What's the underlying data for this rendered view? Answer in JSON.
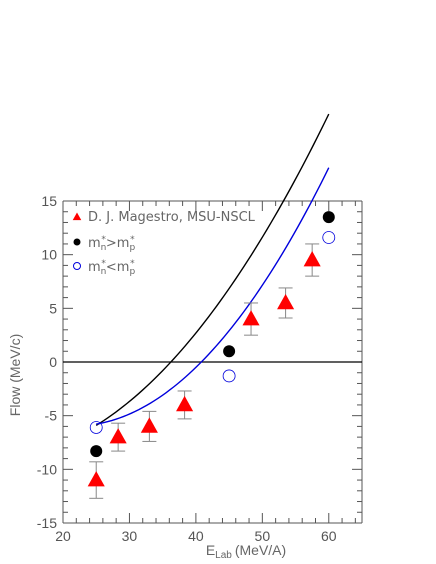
{
  "chart_data": {
    "type": "scatter",
    "xlabel": "E",
    "xlabel_sub": "Lab",
    "xlabel_unit": "(MeV/A)",
    "ylabel": "Flow (MeV/c)",
    "xlim": [
      20,
      65
    ],
    "ylim": [
      -15,
      15
    ],
    "x_ticks": [
      20,
      30,
      40,
      50,
      60
    ],
    "y_ticks": [
      -15,
      -10,
      -5,
      0,
      5,
      10,
      15
    ],
    "grid": false,
    "legend_position": "top-left",
    "series": [
      {
        "name": "D. J. Magestro, MSU-NSCL",
        "marker": "triangle",
        "color": "#ff0000",
        "x": [
          25,
          28.3,
          33,
          38.3,
          48.3,
          53.5,
          57.5
        ],
        "y": [
          -11,
          -7,
          -6,
          -4,
          4,
          5.5,
          9.5
        ],
        "err": [
          1.7,
          1.3,
          1.4,
          1.3,
          1.5,
          1.4,
          1.5
        ]
      },
      {
        "name_parts": [
          "m",
          "n",
          "*",
          ">m",
          "p",
          "*"
        ],
        "marker": "filled-circle",
        "color": "#000000",
        "x": [
          25,
          45,
          60
        ],
        "y": [
          -8.3,
          1,
          13.5
        ],
        "fit": {
          "a": 0.01275,
          "b": -0.255,
          "c": -7.5
        }
      },
      {
        "name_parts": [
          "m",
          "n",
          "*",
          "<m",
          "p",
          "*"
        ],
        "marker": "open-circle",
        "color": "#0000dd",
        "x": [
          25,
          45,
          60
        ],
        "y": [
          -6.1,
          -1.3,
          11.6
        ],
        "fit": {
          "a": 0.0165,
          "b": -0.72,
          "c": 1.9
        }
      }
    ],
    "reference_line_y": 0,
    "colors": {
      "axis": "#555555",
      "zero_line": "#000000",
      "errorbar": "#888888"
    }
  }
}
